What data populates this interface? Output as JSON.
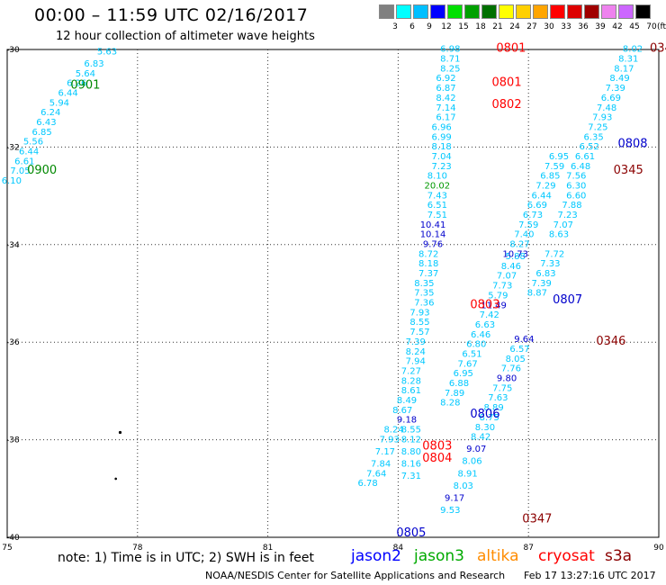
{
  "header": {
    "title": "00:00 – 11:59 UTC 02/16/2017",
    "subtitle": "12 hour collection of altimeter wave heights"
  },
  "footer": {
    "note": "note: 1) Time is in UTC; 2) SWH is in feet",
    "credit": "NOAA/NESDIS Center for Satellite Applications and Research",
    "timestamp": "Feb 17 13:27:16 UTC 2017"
  },
  "satellites": [
    {
      "name": "jason2",
      "color": "#0000ff"
    },
    {
      "name": "jason3",
      "color": "#00aa00"
    },
    {
      "name": "altika",
      "color": "#ff8c00"
    },
    {
      "name": "cryosat",
      "color": "#ff0000"
    },
    {
      "name": "s3a",
      "color": "#8b0000"
    }
  ],
  "color_scale": {
    "unit": "(ft)",
    "labels": [
      "3",
      "6",
      "9",
      "12",
      "15",
      "18",
      "21",
      "24",
      "27",
      "30",
      "33",
      "36",
      "39",
      "42",
      "45",
      "70"
    ],
    "colors": [
      "#808080",
      "#00ffff",
      "#00bfff",
      "#0000ff",
      "#00e000",
      "#00a000",
      "#007000",
      "#ffff00",
      "#ffd000",
      "#ffa500",
      "#ff0000",
      "#dd0000",
      "#a00000",
      "#ee82ee",
      "#cc66ff",
      "#000000"
    ]
  },
  "map": {
    "lon_ticks": [
      "75",
      "78",
      "81",
      "84",
      "87",
      "90"
    ],
    "lat_ticks": [
      "-30",
      "-32",
      "-34",
      "-36",
      "-38",
      "-40"
    ],
    "lon_range": [
      75,
      90
    ],
    "lat_range": [
      -30,
      -40
    ]
  },
  "swh_colors": {
    "cyan": "#00c8ff",
    "green": "#009900",
    "blue": "#0000cc",
    "red": "#ff0000",
    "darkred": "#8b0000"
  },
  "passes": [
    {
      "id": "0900",
      "color": "#008800",
      "lon": 75.8,
      "lat": -32.55
    },
    {
      "id": "0901",
      "color": "#008800",
      "lon": 76.8,
      "lat": -30.8
    },
    {
      "id": "0801",
      "color": "#ff0000",
      "lon": 86.6,
      "lat": -30.05
    },
    {
      "id": "0801",
      "color": "#ff0000",
      "lon": 86.5,
      "lat": -30.75
    },
    {
      "id": "0802",
      "color": "#ff0000",
      "lon": 86.5,
      "lat": -31.2
    },
    {
      "id": "0803",
      "color": "#ff0000",
      "lon": 86.0,
      "lat": -35.3
    },
    {
      "id": "0806",
      "color": "#0000cc",
      "lon": 86.0,
      "lat": -37.55
    },
    {
      "id": "0803",
      "color": "#ff0000",
      "lon": 84.9,
      "lat": -38.2
    },
    {
      "id": "0804",
      "color": "#ff0000",
      "lon": 84.9,
      "lat": -38.45
    },
    {
      "id": "0805",
      "color": "#0000cc",
      "lon": 84.3,
      "lat": -39.98
    },
    {
      "id": "0807",
      "color": "#0000cc",
      "lon": 87.9,
      "lat": -35.2
    },
    {
      "id": "0808",
      "color": "#0000cc",
      "lon": 89.4,
      "lat": -32.0
    },
    {
      "id": "0345",
      "color": "#8b0000",
      "lon": 89.3,
      "lat": -32.55
    },
    {
      "id": "0346",
      "color": "#8b0000",
      "lon": 88.9,
      "lat": -36.05
    },
    {
      "id": "0347",
      "color": "#8b0000",
      "lon": 87.2,
      "lat": -39.7
    },
    {
      "id": "034",
      "color": "#8b0000",
      "lon": 90.05,
      "lat": -30.05
    }
  ],
  "swh": [
    {
      "v": "5.63",
      "lon": 77.3,
      "lat": -30.1,
      "c": "cyan"
    },
    {
      "v": "6.83",
      "lon": 77.0,
      "lat": -30.35,
      "c": "cyan"
    },
    {
      "v": "5.64",
      "lon": 76.8,
      "lat": -30.55,
      "c": "cyan"
    },
    {
      "v": "6.26",
      "lon": 76.6,
      "lat": -30.75,
      "c": "cyan"
    },
    {
      "v": "6.44",
      "lon": 76.4,
      "lat": -30.95,
      "c": "cyan"
    },
    {
      "v": "5.94",
      "lon": 76.2,
      "lat": -31.15,
      "c": "cyan"
    },
    {
      "v": "6.24",
      "lon": 76.0,
      "lat": -31.35,
      "c": "cyan"
    },
    {
      "v": "6.43",
      "lon": 75.9,
      "lat": -31.55,
      "c": "cyan"
    },
    {
      "v": "6.85",
      "lon": 75.8,
      "lat": -31.75,
      "c": "cyan"
    },
    {
      "v": "5.56",
      "lon": 75.6,
      "lat": -31.95,
      "c": "cyan"
    },
    {
      "v": "6.44",
      "lon": 75.5,
      "lat": -32.15,
      "c": "cyan"
    },
    {
      "v": "6.61",
      "lon": 75.4,
      "lat": -32.35,
      "c": "cyan"
    },
    {
      "v": "7.05",
      "lon": 75.3,
      "lat": -32.55,
      "c": "cyan"
    },
    {
      "v": "6.10",
      "lon": 75.1,
      "lat": -32.75,
      "c": "cyan"
    },
    {
      "v": "6.98",
      "lon": 85.2,
      "lat": -30.05,
      "c": "cyan"
    },
    {
      "v": "8.71",
      "lon": 85.2,
      "lat": -30.25,
      "c": "cyan"
    },
    {
      "v": "8.25",
      "lon": 85.2,
      "lat": -30.45,
      "c": "cyan"
    },
    {
      "v": "6.92",
      "lon": 85.1,
      "lat": -30.65,
      "c": "cyan"
    },
    {
      "v": "6.87",
      "lon": 85.1,
      "lat": -30.85,
      "c": "cyan"
    },
    {
      "v": "8.42",
      "lon": 85.1,
      "lat": -31.05,
      "c": "cyan"
    },
    {
      "v": "7.14",
      "lon": 85.1,
      "lat": -31.25,
      "c": "cyan"
    },
    {
      "v": "6.17",
      "lon": 85.1,
      "lat": -31.45,
      "c": "cyan"
    },
    {
      "v": "6.96",
      "lon": 85.0,
      "lat": -31.65,
      "c": "cyan"
    },
    {
      "v": "6.99",
      "lon": 85.0,
      "lat": -31.85,
      "c": "cyan"
    },
    {
      "v": "8.18",
      "lon": 85.0,
      "lat": -32.05,
      "c": "cyan"
    },
    {
      "v": "7.04",
      "lon": 85.0,
      "lat": -32.25,
      "c": "cyan"
    },
    {
      "v": "7.23",
      "lon": 85.0,
      "lat": -32.45,
      "c": "cyan"
    },
    {
      "v": "8.10",
      "lon": 84.9,
      "lat": -32.65,
      "c": "cyan"
    },
    {
      "v": "20.02",
      "lon": 84.9,
      "lat": -32.85,
      "c": "green"
    },
    {
      "v": "7.43",
      "lon": 84.9,
      "lat": -33.05,
      "c": "cyan"
    },
    {
      "v": "6.51",
      "lon": 84.9,
      "lat": -33.25,
      "c": "cyan"
    },
    {
      "v": "7.51",
      "lon": 84.9,
      "lat": -33.45,
      "c": "cyan"
    },
    {
      "v": "10.41",
      "lon": 84.8,
      "lat": -33.65,
      "c": "blue"
    },
    {
      "v": "10.14",
      "lon": 84.8,
      "lat": -33.85,
      "c": "blue"
    },
    {
      "v": "9.76",
      "lon": 84.8,
      "lat": -34.05,
      "c": "blue"
    },
    {
      "v": "8.72",
      "lon": 84.7,
      "lat": -34.25,
      "c": "cyan"
    },
    {
      "v": "8.18",
      "lon": 84.7,
      "lat": -34.45,
      "c": "cyan"
    },
    {
      "v": "7.37",
      "lon": 84.7,
      "lat": -34.65,
      "c": "cyan"
    },
    {
      "v": "8.35",
      "lon": 84.6,
      "lat": -34.85,
      "c": "cyan"
    },
    {
      "v": "7.35",
      "lon": 84.6,
      "lat": -35.05,
      "c": "cyan"
    },
    {
      "v": "7.36",
      "lon": 84.6,
      "lat": -35.25,
      "c": "cyan"
    },
    {
      "v": "7.93",
      "lon": 84.5,
      "lat": -35.45,
      "c": "cyan"
    },
    {
      "v": "8.55",
      "lon": 84.5,
      "lat": -35.65,
      "c": "cyan"
    },
    {
      "v": "7.57",
      "lon": 84.5,
      "lat": -35.85,
      "c": "cyan"
    },
    {
      "v": "7.39",
      "lon": 84.4,
      "lat": -36.05,
      "c": "cyan"
    },
    {
      "v": "8.24",
      "lon": 84.4,
      "lat": -36.25,
      "c": "cyan"
    },
    {
      "v": "7.94",
      "lon": 84.4,
      "lat": -36.45,
      "c": "cyan"
    },
    {
      "v": "7.27",
      "lon": 84.3,
      "lat": -36.65,
      "c": "cyan"
    },
    {
      "v": "8.28",
      "lon": 84.3,
      "lat": -36.85,
      "c": "cyan"
    },
    {
      "v": "8.61",
      "lon": 84.3,
      "lat": -37.05,
      "c": "cyan"
    },
    {
      "v": "8.49",
      "lon": 84.2,
      "lat": -37.25,
      "c": "cyan"
    },
    {
      "v": "8.67",
      "lon": 84.1,
      "lat": -37.45,
      "c": "cyan"
    },
    {
      "v": "9.18",
      "lon": 84.2,
      "lat": -37.65,
      "c": "blue"
    },
    {
      "v": "8.55",
      "lon": 84.3,
      "lat": -37.85,
      "c": "cyan"
    },
    {
      "v": "8.12",
      "lon": 84.3,
      "lat": -38.05,
      "c": "cyan"
    },
    {
      "v": "8.80",
      "lon": 84.3,
      "lat": -38.3,
      "c": "cyan"
    },
    {
      "v": "8.16",
      "lon": 84.3,
      "lat": -38.55,
      "c": "cyan"
    },
    {
      "v": "7.31",
      "lon": 84.3,
      "lat": -38.8,
      "c": "cyan"
    },
    {
      "v": "8.24",
      "lon": 83.9,
      "lat": -37.85,
      "c": "cyan"
    },
    {
      "v": "7.93",
      "lon": 83.8,
      "lat": -38.05,
      "c": "cyan"
    },
    {
      "v": "7.17",
      "lon": 83.7,
      "lat": -38.3,
      "c": "cyan"
    },
    {
      "v": "7.84",
      "lon": 83.6,
      "lat": -38.55,
      "c": "cyan"
    },
    {
      "v": "7.64",
      "lon": 83.5,
      "lat": -38.75,
      "c": "cyan"
    },
    {
      "v": "6.78",
      "lon": 83.3,
      "lat": -38.95,
      "c": "cyan"
    },
    {
      "v": "5.88",
      "lon": 86.7,
      "lat": -34.3,
      "c": "cyan"
    },
    {
      "v": "8.46",
      "lon": 86.6,
      "lat": -34.5,
      "c": "cyan"
    },
    {
      "v": "7.07",
      "lon": 86.5,
      "lat": -34.7,
      "c": "cyan"
    },
    {
      "v": "7.73",
      "lon": 86.4,
      "lat": -34.9,
      "c": "cyan"
    },
    {
      "v": "5.79",
      "lon": 86.3,
      "lat": -35.1,
      "c": "cyan"
    },
    {
      "v": "11.49",
      "lon": 86.2,
      "lat": -35.3,
      "c": "blue"
    },
    {
      "v": "7.42",
      "lon": 86.1,
      "lat": -35.5,
      "c": "cyan"
    },
    {
      "v": "6.63",
      "lon": 86.0,
      "lat": -35.7,
      "c": "cyan"
    },
    {
      "v": "6.46",
      "lon": 85.9,
      "lat": -35.9,
      "c": "cyan"
    },
    {
      "v": "6.80",
      "lon": 85.8,
      "lat": -36.1,
      "c": "cyan"
    },
    {
      "v": "6.51",
      "lon": 85.7,
      "lat": -36.3,
      "c": "cyan"
    },
    {
      "v": "7.67",
      "lon": 85.6,
      "lat": -36.5,
      "c": "cyan"
    },
    {
      "v": "6.95",
      "lon": 85.5,
      "lat": -36.7,
      "c": "cyan"
    },
    {
      "v": "6.88",
      "lon": 85.4,
      "lat": -36.9,
      "c": "cyan"
    },
    {
      "v": "7.89",
      "lon": 85.3,
      "lat": -37.1,
      "c": "cyan"
    },
    {
      "v": "8.28",
      "lon": 85.2,
      "lat": -37.3,
      "c": "cyan"
    },
    {
      "v": "8.02",
      "lon": 89.4,
      "lat": -30.05,
      "c": "cyan"
    },
    {
      "v": "8.31",
      "lon": 89.3,
      "lat": -30.25,
      "c": "cyan"
    },
    {
      "v": "8.17",
      "lon": 89.2,
      "lat": -30.45,
      "c": "cyan"
    },
    {
      "v": "8.49",
      "lon": 89.1,
      "lat": -30.65,
      "c": "cyan"
    },
    {
      "v": "7.39",
      "lon": 89.0,
      "lat": -30.85,
      "c": "cyan"
    },
    {
      "v": "6.69",
      "lon": 88.9,
      "lat": -31.05,
      "c": "cyan"
    },
    {
      "v": "7.48",
      "lon": 88.8,
      "lat": -31.25,
      "c": "cyan"
    },
    {
      "v": "7.93",
      "lon": 88.7,
      "lat": -31.45,
      "c": "cyan"
    },
    {
      "v": "7.25",
      "lon": 88.6,
      "lat": -31.65,
      "c": "cyan"
    },
    {
      "v": "6.35",
      "lon": 88.5,
      "lat": -31.85,
      "c": "cyan"
    },
    {
      "v": "6.52",
      "lon": 88.4,
      "lat": -32.05,
      "c": "cyan"
    },
    {
      "v": "6.61",
      "lon": 88.3,
      "lat": -32.25,
      "c": "cyan"
    },
    {
      "v": "6.48",
      "lon": 88.2,
      "lat": -32.45,
      "c": "cyan"
    },
    {
      "v": "7.56",
      "lon": 88.1,
      "lat": -32.65,
      "c": "cyan"
    },
    {
      "v": "6.30",
      "lon": 88.1,
      "lat": -32.85,
      "c": "cyan"
    },
    {
      "v": "6.60",
      "lon": 88.1,
      "lat": -33.05,
      "c": "cyan"
    },
    {
      "v": "7.88",
      "lon": 88.0,
      "lat": -33.25,
      "c": "cyan"
    },
    {
      "v": "7.23",
      "lon": 87.9,
      "lat": -33.45,
      "c": "cyan"
    },
    {
      "v": "7.07",
      "lon": 87.8,
      "lat": -33.65,
      "c": "cyan"
    },
    {
      "v": "8.63",
      "lon": 87.7,
      "lat": -33.85,
      "c": "cyan"
    },
    {
      "v": "7.72",
      "lon": 87.6,
      "lat": -34.25,
      "c": "cyan"
    },
    {
      "v": "7.33",
      "lon": 87.5,
      "lat": -34.45,
      "c": "cyan"
    },
    {
      "v": "6.83",
      "lon": 87.4,
      "lat": -34.65,
      "c": "cyan"
    },
    {
      "v": "7.39",
      "lon": 87.3,
      "lat": -34.85,
      "c": "cyan"
    },
    {
      "v": "8.87",
      "lon": 87.2,
      "lat": -35.05,
      "c": "cyan"
    },
    {
      "v": "6.95",
      "lon": 87.7,
      "lat": -32.25,
      "c": "cyan"
    },
    {
      "v": "7.59",
      "lon": 87.6,
      "lat": -32.45,
      "c": "cyan"
    },
    {
      "v": "6.85",
      "lon": 87.5,
      "lat": -32.65,
      "c": "cyan"
    },
    {
      "v": "7.29",
      "lon": 87.4,
      "lat": -32.85,
      "c": "cyan"
    },
    {
      "v": "6.44",
      "lon": 87.3,
      "lat": -33.05,
      "c": "cyan"
    },
    {
      "v": "6.69",
      "lon": 87.2,
      "lat": -33.25,
      "c": "cyan"
    },
    {
      "v": "6.73",
      "lon": 87.1,
      "lat": -33.45,
      "c": "cyan"
    },
    {
      "v": "7.59",
      "lon": 87.0,
      "lat": -33.65,
      "c": "cyan"
    },
    {
      "v": "7.40",
      "lon": 86.9,
      "lat": -33.85,
      "c": "cyan"
    },
    {
      "v": "8.27",
      "lon": 86.8,
      "lat": -34.05,
      "c": "cyan"
    },
    {
      "v": "10.73",
      "lon": 86.7,
      "lat": -34.25,
      "c": "blue"
    },
    {
      "v": "9.64",
      "lon": 86.9,
      "lat": -36.0,
      "c": "blue"
    },
    {
      "v": "6.57",
      "lon": 86.8,
      "lat": -36.2,
      "c": "cyan"
    },
    {
      "v": "8.05",
      "lon": 86.7,
      "lat": -36.4,
      "c": "cyan"
    },
    {
      "v": "7.76",
      "lon": 86.6,
      "lat": -36.6,
      "c": "cyan"
    },
    {
      "v": "9.80",
      "lon": 86.5,
      "lat": -36.8,
      "c": "blue"
    },
    {
      "v": "7.75",
      "lon": 86.4,
      "lat": -37.0,
      "c": "cyan"
    },
    {
      "v": "7.63",
      "lon": 86.3,
      "lat": -37.2,
      "c": "cyan"
    },
    {
      "v": "8.89",
      "lon": 86.2,
      "lat": -37.4,
      "c": "cyan"
    },
    {
      "v": "8.75",
      "lon": 86.1,
      "lat": -37.6,
      "c": "cyan"
    },
    {
      "v": "8.30",
      "lon": 86.0,
      "lat": -37.8,
      "c": "cyan"
    },
    {
      "v": "8.42",
      "lon": 85.9,
      "lat": -38.0,
      "c": "cyan"
    },
    {
      "v": "9.07",
      "lon": 85.8,
      "lat": -38.25,
      "c": "blue"
    },
    {
      "v": "8.06",
      "lon": 85.7,
      "lat": -38.5,
      "c": "cyan"
    },
    {
      "v": "8.91",
      "lon": 85.6,
      "lat": -38.75,
      "c": "cyan"
    },
    {
      "v": "8.03",
      "lon": 85.5,
      "lat": -39.0,
      "c": "cyan"
    },
    {
      "v": "9.17",
      "lon": 85.3,
      "lat": -39.25,
      "c": "blue"
    },
    {
      "v": "9.53",
      "lon": 85.2,
      "lat": -39.5,
      "c": "cyan"
    }
  ]
}
